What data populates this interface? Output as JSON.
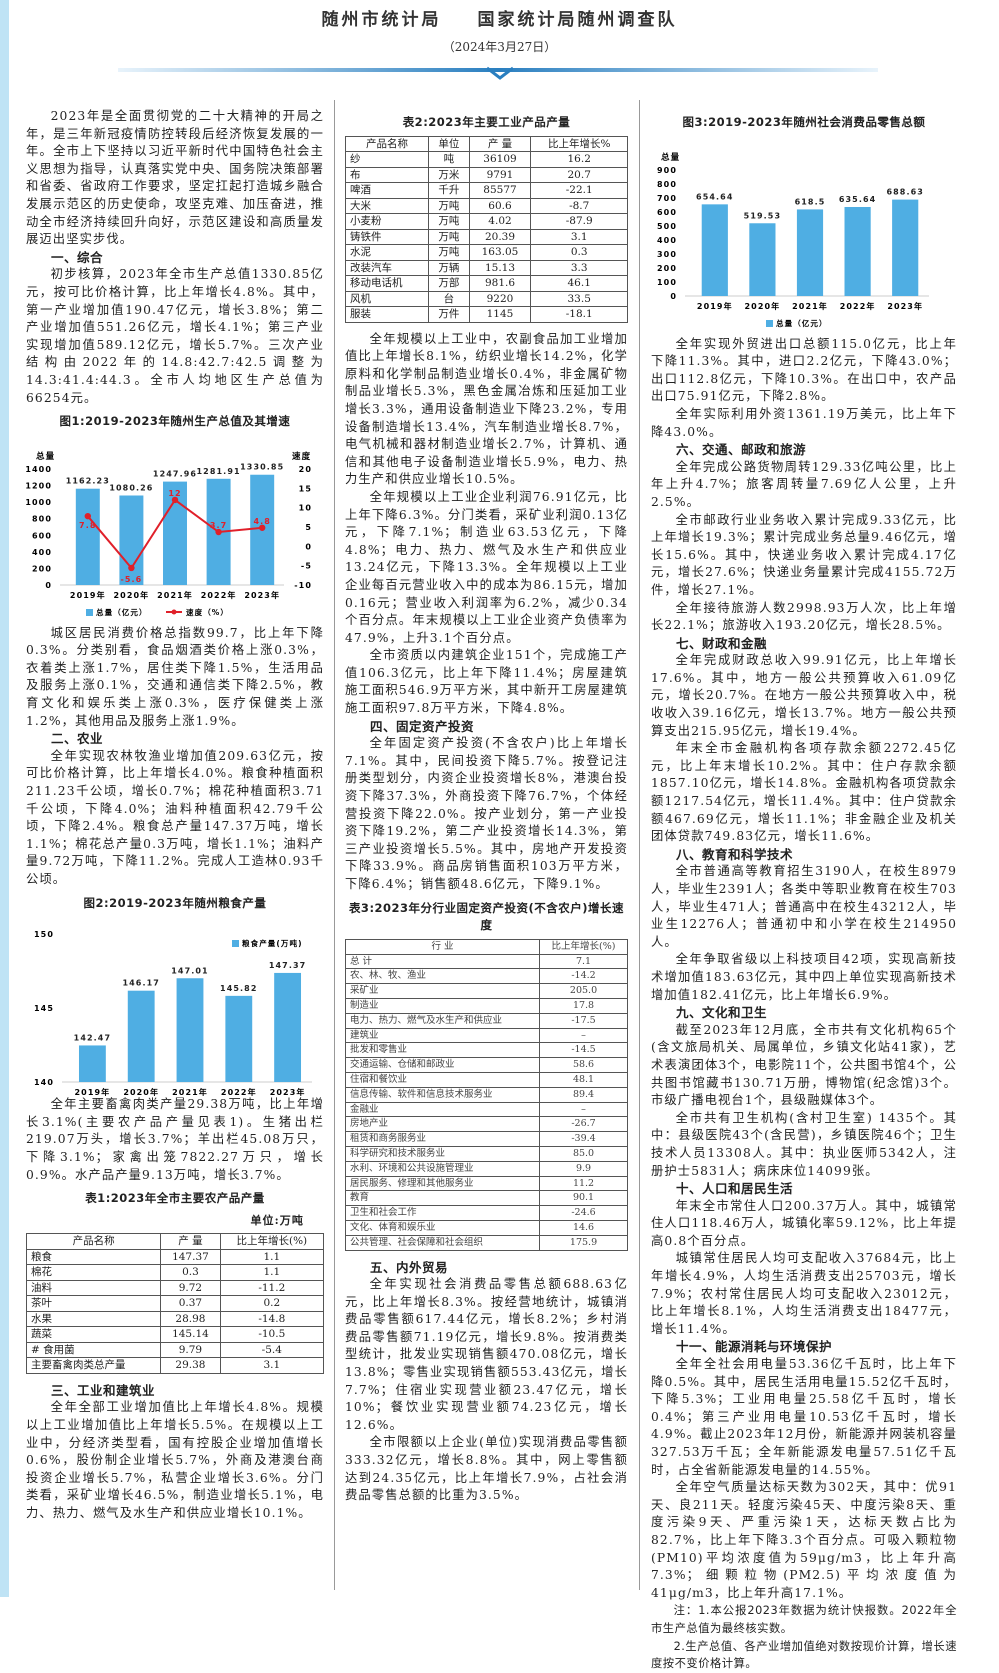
{
  "header": {
    "org1": "随州市统计局",
    "org2": "国家统计局随州调查队",
    "date": "（2024年3月27日）"
  },
  "colors": {
    "bar": "#4faee3",
    "line": "#e0202a",
    "accent": "#2a7fc0"
  },
  "columns": [
    [
      {
        "type": "p",
        "text": "2023年是全面贯彻党的二十大精神的开局之年，是三年新冠疫情防控转段后经济恢复发展的一年。全市上下坚持以习近平新时代中国特色社会主义思想为指导，认真落实党中央、国务院决策部署和省委、省政府工作要求，坚定扛起打造城乡融合发展示范区的历史使命，攻坚克难、加压奋进，推动全市经济持续回升向好，示范区建设和高质量发展迈出坚实步伐。"
      },
      {
        "type": "h",
        "text": "一、综合"
      },
      {
        "type": "p",
        "text": "初步核算，2023年全市生产总值1330.85亿元，按可比价格计算，比上年增长4.8%。其中，第一产业增加值190.47亿元，增长3.8%；第二产业增加值551.26亿元，增长4.1%；第三产业实现增加值589.12亿元，增长5.7%。三次产业结构由2022年的14.8:42.7:42.5调整为14.3:41.4:44.3。全市人均地区生产总值为66254元。"
      },
      {
        "type": "chart",
        "index": 0
      },
      {
        "type": "p",
        "text": "城区居民消费价格总指数99.7，比上年下降0.3%。分类别看，食品烟酒类价格上涨0.3%，衣着类上涨1.7%，居住类下降1.5%，生活用品及服务上涨0.1%，交通和通信类下降2.5%，教育文化和娱乐类上涨0.3%，医疗保健类上涨1.2%，其他用品及服务上涨1.9%。"
      },
      {
        "type": "h",
        "text": "二、农业"
      },
      {
        "type": "p",
        "text": "全年实现农林牧渔业增加值209.63亿元，按可比价格计算，比上年增长4.0%。粮食种植面积211.23千公顷，增长0.7%；棉花种植面积3.71千公顷，下降4.0%；油料种植面积42.79千公顷，下降2.4%。粮食总产量147.37万吨，增长1.1%；棉花总产量0.3万吨，增长1.1%；油料产量9.72万吨，下降11.2%。完成人工造林0.93千公顷。"
      },
      {
        "type": "chart",
        "index": 1
      },
      {
        "type": "p",
        "text": "全年主要畜禽肉类产量29.38万吨，比上年增长3.1%(主要农产品产量见表1)。生猪出栏219.07万头，增长3.7%；羊出栏45.08万只，下降3.1%；家禽出笼7822.27万只，增长0.9%。水产品产量9.13万吨，增长3.7%。"
      },
      {
        "type": "table",
        "title": "表1:2023年全市主要农产品产量",
        "unit": "单位:万吨",
        "headers": [
          "产品名称",
          "产 量",
          "比上年增长(%)"
        ],
        "rows": [
          [
            "粮食",
            "147.37",
            "1.1"
          ],
          [
            "棉花",
            "0.3",
            "1.1"
          ],
          [
            "油料",
            "9.72",
            "-11.2"
          ],
          [
            "茶叶",
            "0.37",
            "0.2"
          ],
          [
            "水果",
            "28.98",
            "-14.8"
          ],
          [
            "蔬菜",
            "145.14",
            "-10.5"
          ],
          [
            "# 食用菌",
            "9.79",
            "-5.4"
          ],
          [
            "主要畜禽肉类总产量",
            "29.38",
            "3.1"
          ]
        ]
      },
      {
        "type": "h",
        "text": "三、工业和建筑业"
      },
      {
        "type": "p",
        "text": "全年全部工业增加值比上年增长4.8%。规模以上工业增加值比上年增长5.5%。在规模以上工业中，分经济类型看，国有控股企业增加值增长0.6%，股份制企业增长5.7%，外商及港澳台商投资企业增长5.7%，私营企业增长3.6%。分门类看，采矿业增长46.5%，制造业增长5.1%，电力、热力、燃气及水生产和供应业增长10.1%。"
      }
    ],
    [
      {
        "type": "table",
        "title": "表2:2023年主要工业产品产量",
        "headers": [
          "产品名称",
          "单位",
          "产 量",
          "比上年增长%"
        ],
        "rows": [
          [
            "纱",
            "吨",
            "36109",
            "16.2"
          ],
          [
            "布",
            "万米",
            "9791",
            "20.7"
          ],
          [
            "啤酒",
            "千升",
            "85577",
            "-22.1"
          ],
          [
            "大米",
            "万吨",
            "60.6",
            "-8.7"
          ],
          [
            "小麦粉",
            "万吨",
            "4.02",
            "-87.9"
          ],
          [
            "铸铁件",
            "万吨",
            "20.39",
            "3.1"
          ],
          [
            "水泥",
            "万吨",
            "163.05",
            "0.3"
          ],
          [
            "改装汽车",
            "万辆",
            "15.13",
            "3.3"
          ],
          [
            "移动电话机",
            "万部",
            "981.6",
            "46.1"
          ],
          [
            "风机",
            "台",
            "9220",
            "33.5"
          ],
          [
            "服装",
            "万件",
            "1145",
            "-18.1"
          ]
        ]
      },
      {
        "type": "p",
        "text": "全年规模以上工业中，农副食品加工业增加值比上年增长8.1%，纺织业增长14.2%，化学原料和化学制品制造业增长0.4%，非金属矿物制品业增长5.3%，黑色金属冶炼和压延加工业增长3.3%，通用设备制造业下降23.2%，专用设备制造增长13.4%，汽车制造业增长8.7%，电气机械和器材制造业增长2.7%，计算机、通信和其他电子设备制造业增长5.9%，电力、热力生产和供应业增长10.5%。"
      },
      {
        "type": "p",
        "text": "全年规模以上工业企业利润76.91亿元，比上年下降6.3%。分门类看，采矿业利润0.13亿元，下降7.1%；制造业63.53亿元，下降4.8%；电力、热力、燃气及水生产和供应业13.24亿元，下降13.3%。全年规模以上工业企业每百元营业收入中的成本为86.15元，增加0.16元；营业收入利润率为6.2%，减少0.34个百分点。年末规模以上工业企业资产负债率为47.9%，上升3.1个百分点。"
      },
      {
        "type": "p",
        "text": "全市资质以内建筑企业151个，完成施工产值106.3亿元，比上年下降11.4%；房屋建筑施工面积546.9万平方米，其中新开工房屋建筑施工面积97.8万平方米，下降4.8%。"
      },
      {
        "type": "h",
        "text": "四、固定资产投资"
      },
      {
        "type": "p",
        "text": "全年固定资产投资(不含农户)比上年增长7.1%。其中，民间投资下降5.7%。按登记注册类型划分，内资企业投资增长8%，港澳台投资下降37.3%，外商投资下降76.7%，个体经营投资下降22.0%。按产业划分，第一产业投资下降19.2%，第二产业投资增长14.3%，第三产业投资增长5.5%。其中，房地产开发投资下降33.9%。商品房销售面积103万平方米，下降6.4%；销售额48.6亿元，下降9.1%。"
      },
      {
        "type": "table",
        "cls": "t3",
        "title": "表3:2023年分行业固定资产投资(不含农户)增长速度",
        "headers": [
          "行 业",
          "比上年增长(%)"
        ],
        "rows": [
          [
            "总 计",
            "7.1"
          ],
          [
            "农、林、牧、渔业",
            "-14.2"
          ],
          [
            "采矿业",
            "205.0"
          ],
          [
            "制造业",
            "17.8"
          ],
          [
            "电力、热力、燃气及水生产和供应业",
            "-17.5"
          ],
          [
            "建筑业",
            "–"
          ],
          [
            "批发和零售业",
            "-14.5"
          ],
          [
            "交通运输、仓储和邮政业",
            "58.6"
          ],
          [
            "住宿和餐饮业",
            "48.1"
          ],
          [
            "信息传输、软件和信息技术服务业",
            "89.4"
          ],
          [
            "金融业",
            "–"
          ],
          [
            "房地产业",
            "-26.7"
          ],
          [
            "租赁和商务服务业",
            "-39.4"
          ],
          [
            "科学研究和技术服务业",
            "85.0"
          ],
          [
            "水利、环境和公共设施管理业",
            "9.9"
          ],
          [
            "居民服务、修理和其他服务业",
            "11.2"
          ],
          [
            "教育",
            "90.1"
          ],
          [
            "卫生和社会工作",
            "-24.6"
          ],
          [
            "文化、体育和娱乐业",
            "14.6"
          ],
          [
            "公共管理、社会保障和社会组织",
            "175.9"
          ]
        ]
      },
      {
        "type": "h",
        "text": "五、内外贸易"
      },
      {
        "type": "p",
        "text": "全年实现社会消费品零售总额688.63亿元，比上年增长8.3%。按经营地统计，城镇消费品零售额617.44亿元，增长8.2%；乡村消费品零售额71.19亿元，增长9.8%。按消费类型统计，批发业实现销售额470.08亿元，增长13.8%；零售业实现销售额553.43亿元，增长7.7%；住宿业实现营业额23.47亿元，增长10%；餐饮业实现营业额74.23亿元，增长12.6%。"
      },
      {
        "type": "p",
        "text": "全市限额以上企业(单位)实现消费品零售额333.32亿元，增长8.8%。其中，网上零售额达到24.35亿元，比上年增长7.9%，占社会消费品零售总额的比重为3.5%。"
      }
    ],
    [
      {
        "type": "chart",
        "index": 2
      },
      {
        "type": "p",
        "text": "全年实现外贸进出口总额115.0亿元，比上年下降11.3%。其中，进口2.2亿元，下降43.0%；出口112.8亿元，下降10.3%。在出口中，农产品出口75.91亿元，下降2.8%。"
      },
      {
        "type": "p",
        "text": "全年实际利用外资1361.19万美元，比上年下降43.0%。"
      },
      {
        "type": "h",
        "text": "六、交通、邮政和旅游"
      },
      {
        "type": "p",
        "text": "全年完成公路货物周转129.33亿吨公里，比上年上升4.7%；旅客周转量7.69亿人公里，上升2.5%。"
      },
      {
        "type": "p",
        "text": "全市邮政行业业务收入累计完成9.33亿元，比上年增长19.3%；累计完成业务总量9.46亿元，增长15.6%。其中，快递业务收入累计完成4.17亿元，增长27.6%；快递业务量累计完成4155.72万件，增长27.1%。"
      },
      {
        "type": "p",
        "text": "全年接待旅游人数2998.93万人次，比上年增长22.1%；旅游收入193.20亿元，增长28.5%。"
      },
      {
        "type": "h",
        "text": "七、财政和金融"
      },
      {
        "type": "p",
        "text": "全年完成财政总收入99.91亿元，比上年增长17.6%。其中，地方一般公共预算收入61.09亿元，增长20.7%。在地方一般公共预算收入中，税收收入39.16亿元，增长13.7%。地方一般公共预算支出215.95亿元，增长19.4%。"
      },
      {
        "type": "p",
        "text": "年末全市金融机构各项存款余额2272.45亿元，比上年末增长10.2%。其中：住户存款余额1857.10亿元，增长14.8%。金融机构各项贷款余额1217.54亿元，增长11.4%。其中：住户贷款余额467.69亿元，增长11.1%；非金融企业及机关团体贷款749.83亿元，增长11.6%。"
      },
      {
        "type": "h",
        "text": "八、教育和科学技术"
      },
      {
        "type": "p",
        "text": "全市普通高等教育招生3190人，在校生8979人，毕业生2391人；各类中等职业教育在校生703人，毕业生471人；普通高中在校生43212人，毕业生12276人；普通初中和小学在校生214950人。"
      },
      {
        "type": "p",
        "text": "全年争取省级以上科技项目42项，实现高新技术增加值183.63亿元，其中四上单位实现高新技术增加值182.41亿元，比上年增长6.9%。"
      },
      {
        "type": "h",
        "text": "九、文化和卫生"
      },
      {
        "type": "p",
        "text": "截至2023年12月底，全市共有文化机构65个(含文旅局机关、局属单位，乡镇文化站41家)，艺术表演团体3个，电影院11个，公共图书馆4个，公共图书馆藏书130.71万册，博物馆(纪念馆)3个。市级广播电视台1个，县级融媒体3个。"
      },
      {
        "type": "p",
        "text": "全市共有卫生机构(含村卫生室) 1435个。其中：县级医院43个(含民营)，乡镇医院46个；卫生技术人员13308人。其中：执业医师5342人，注册护士5831人；病床床位14099张。"
      },
      {
        "type": "h",
        "text": "十、人口和居民生活"
      },
      {
        "type": "p",
        "text": "年末全市常住人口200.37万人。其中，城镇常住人口118.46万人，城镇化率59.12%，比上年提高0.8个百分点。"
      },
      {
        "type": "p",
        "text": "城镇常住居民人均可支配收入37684元，比上年增长4.9%，人均生活消费支出25703元，增长7.9%；农村常住居民人均可支配收入23012元，比上年增长8.1%，人均生活消费支出18477元，增长11.4%。"
      },
      {
        "type": "h",
        "text": "十一、能源消耗与环境保护"
      },
      {
        "type": "p",
        "text": "全年全社会用电量53.36亿千瓦时，比上年下降0.5%。其中，居民生活用电量15.52亿千瓦时，下降5.3%；工业用电量25.58亿千瓦时，增长0.4%；第三产业用电量10.53亿千瓦时，增长4.9%。截止2023年12月份，新能源并网装机容量327.53万千瓦；全年新能源发电量57.51亿千瓦时，占全省新能源发电量的14.55%。"
      },
      {
        "type": "p",
        "text": "全年空气质量达标天数为302天，其中：优91天、良211天。轻度污染45天、中度污染8天、重度污染9天、严重污染1天，达标天数占比为82.7%，比上年下降3.3个百分点。可吸入颗粒物(PM10)平均浓度值为59μg/m3，比上年升高7.3%；细颗粒物(PM2.5)平均浓度值为41μg/m3，比上年升高17.1%。"
      },
      {
        "type": "note",
        "text": "注：1.本公报2023年数据为统计快报数。2022年全市生产总值为最终核实数。"
      },
      {
        "type": "note",
        "text": "2.生产总值、各产业增加值绝对数按现价计算，增长速度按不变价格计算。"
      }
    ]
  ],
  "chart_data": [
    {
      "type": "bar",
      "title": "图1:2019-2023年随州生产总值及其增速",
      "categories": [
        "2019年",
        "2020年",
        "2021年",
        "2022年",
        "2023年"
      ],
      "series": [
        {
          "name": "总量（亿元）",
          "values": [
            1162.23,
            1080.26,
            1247.96,
            1281.91,
            1330.85
          ],
          "axis": "left"
        },
        {
          "name": "速度（%）",
          "type": "line",
          "values": [
            7.8,
            -5.6,
            12.0,
            3.7,
            4.8
          ],
          "axis": "right"
        }
      ],
      "ylabel": "总量",
      "y2label": "速度",
      "ylim": [
        0,
        1400
      ],
      "yticks": [
        0,
        200,
        400,
        600,
        800,
        1000,
        1200,
        1400
      ],
      "y2lim": [
        -10,
        20
      ],
      "y2ticks": [
        -10,
        -5,
        0,
        5,
        10,
        15,
        20
      ],
      "legend": "bottom"
    },
    {
      "type": "bar",
      "title": "图2:2019-2023年随州粮食产量",
      "categories": [
        "2019年",
        "2020年",
        "2021年",
        "2022年",
        "2023年"
      ],
      "series": [
        {
          "name": "粮食产量(万吨)",
          "values": [
            142.47,
            146.17,
            147.01,
            145.82,
            147.37
          ]
        }
      ],
      "ylim": [
        140,
        150
      ],
      "yticks": [
        140,
        145,
        150
      ],
      "legend": "top-right"
    },
    {
      "type": "bar",
      "title": "图3:2019-2023年随州社会消费品零售总额",
      "categories": [
        "2019年",
        "2020年",
        "2021年",
        "2022年",
        "2023年"
      ],
      "series": [
        {
          "name": "总量（亿元）",
          "values": [
            654.64,
            519.53,
            618.5,
            635.64,
            688.63
          ]
        }
      ],
      "ylabel": "总量",
      "ylim": [
        0,
        900
      ],
      "yticks": [
        0,
        100,
        200,
        300,
        400,
        500,
        600,
        700,
        800,
        900
      ],
      "legend": "bottom"
    }
  ]
}
